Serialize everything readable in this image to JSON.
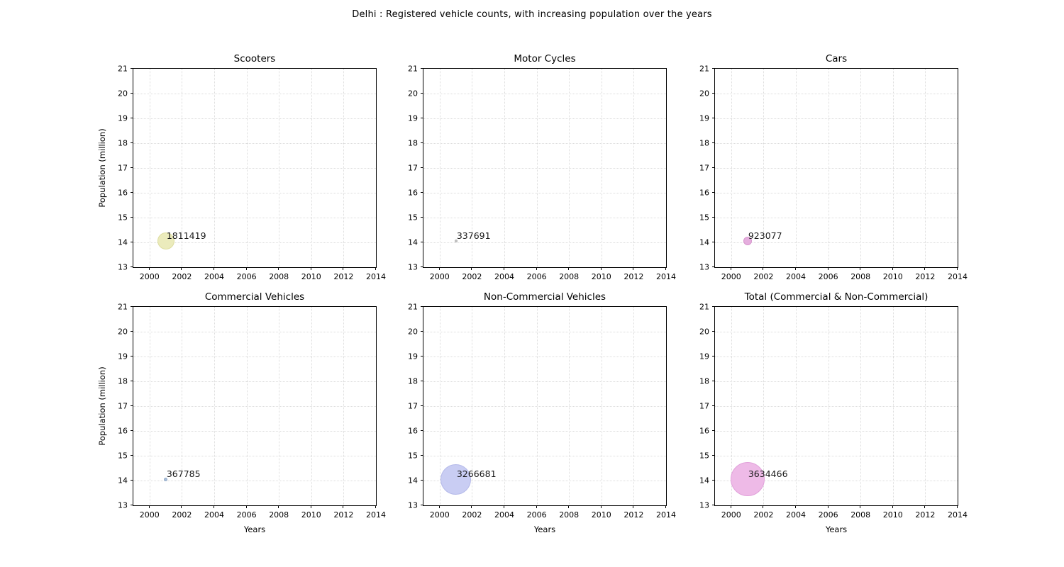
{
  "figure": {
    "suptitle": "Delhi : Registered vehicle counts, with increasing population over the years"
  },
  "chart_data": [
    {
      "type": "scatter",
      "title": "Scooters",
      "xlabel": "",
      "ylabel": "Population (million)",
      "xlim": [
        1999,
        2014
      ],
      "ylim": [
        13,
        21
      ],
      "xticks": [
        2000,
        2002,
        2004,
        2006,
        2008,
        2010,
        2012,
        2014
      ],
      "yticks": [
        13,
        14,
        15,
        16,
        17,
        18,
        19,
        20,
        21
      ],
      "grid": "dotted",
      "points": [
        {
          "x": 2001,
          "y": 14.1,
          "value": 1811419,
          "label": "1811419",
          "fill": "#ebebbc",
          "edge": "#dedea1"
        }
      ]
    },
    {
      "type": "scatter",
      "title": "Motor Cycles",
      "xlabel": "",
      "ylabel": "",
      "xlim": [
        1999,
        2014
      ],
      "ylim": [
        13,
        21
      ],
      "xticks": [
        2000,
        2002,
        2004,
        2006,
        2008,
        2010,
        2012,
        2014
      ],
      "yticks": [
        13,
        14,
        15,
        16,
        17,
        18,
        19,
        20,
        21
      ],
      "grid": "dotted",
      "points": [
        {
          "x": 2001,
          "y": 14.1,
          "value": 337691,
          "label": "337691",
          "fill": "#c9c9c9",
          "edge": "#b2b2b2"
        }
      ]
    },
    {
      "type": "scatter",
      "title": "Cars",
      "xlabel": "",
      "ylabel": "",
      "xlim": [
        1999,
        2014
      ],
      "ylim": [
        13,
        21
      ],
      "xticks": [
        2000,
        2002,
        2004,
        2006,
        2008,
        2010,
        2012,
        2014
      ],
      "yticks": [
        13,
        14,
        15,
        16,
        17,
        18,
        19,
        20,
        21
      ],
      "grid": "dotted",
      "points": [
        {
          "x": 2001,
          "y": 14.1,
          "value": 923077,
          "label": "923077",
          "fill": "#e5aede",
          "edge": "#d795cd"
        }
      ]
    },
    {
      "type": "scatter",
      "title": "Commercial Vehicles",
      "xlabel": "Years",
      "ylabel": "Population (million)",
      "xlim": [
        1999,
        2014
      ],
      "ylim": [
        13,
        21
      ],
      "xticks": [
        2000,
        2002,
        2004,
        2006,
        2008,
        2010,
        2012,
        2014
      ],
      "yticks": [
        13,
        14,
        15,
        16,
        17,
        18,
        19,
        20,
        21
      ],
      "grid": "dotted",
      "points": [
        {
          "x": 2001,
          "y": 14.1,
          "value": 367785,
          "label": "367785",
          "fill": "#aabfd9",
          "edge": "#90a9c8"
        }
      ]
    },
    {
      "type": "scatter",
      "title": "Non-Commercial Vehicles",
      "xlabel": "Years",
      "ylabel": "",
      "xlim": [
        1999,
        2014
      ],
      "ylim": [
        13,
        21
      ],
      "xticks": [
        2000,
        2002,
        2004,
        2006,
        2008,
        2010,
        2012,
        2014
      ],
      "yticks": [
        13,
        14,
        15,
        16,
        17,
        18,
        19,
        20,
        21
      ],
      "grid": "dotted",
      "points": [
        {
          "x": 2001,
          "y": 14.1,
          "value": 3266681,
          "label": "3266681",
          "fill": "#c9cdf3",
          "edge": "#b4b9e9"
        }
      ]
    },
    {
      "type": "scatter",
      "title": "Total (Commercial & Non-Commercial)",
      "xlabel": "Years",
      "ylabel": "",
      "xlim": [
        1999,
        2014
      ],
      "ylim": [
        13,
        21
      ],
      "xticks": [
        2000,
        2002,
        2004,
        2006,
        2008,
        2010,
        2012,
        2014
      ],
      "yticks": [
        13,
        14,
        15,
        16,
        17,
        18,
        19,
        20,
        21
      ],
      "grid": "dotted",
      "points": [
        {
          "x": 2001,
          "y": 14.1,
          "value": 3634466,
          "label": "3634466",
          "fill": "#eebae7",
          "edge": "#e1a1da"
        }
      ]
    }
  ]
}
